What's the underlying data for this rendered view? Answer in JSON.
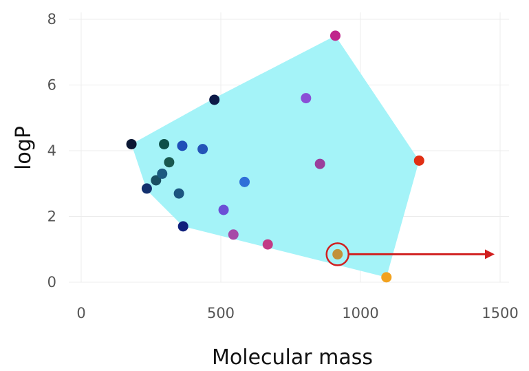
{
  "chart_data": {
    "type": "scatter",
    "xlabel": "Molecular mass",
    "ylabel": "logP",
    "xlim": [
      0,
      1500
    ],
    "ylim": [
      0,
      8
    ],
    "x_ticks": [
      0,
      500,
      1000,
      1500
    ],
    "y_ticks": [
      0,
      2,
      4,
      6,
      8
    ],
    "x_tick_labels": [
      "0",
      "500",
      "1000",
      "1500"
    ],
    "y_tick_labels": [
      "0",
      "2",
      "4",
      "6",
      "8"
    ],
    "grid": true,
    "hull_color": "#a4f3f8",
    "hull": [
      {
        "x": 180,
        "y": 4.2
      },
      {
        "x": 477,
        "y": 5.6
      },
      {
        "x": 910,
        "y": 7.5
      },
      {
        "x": 1210,
        "y": 3.7
      },
      {
        "x": 1093,
        "y": 0.15
      },
      {
        "x": 365,
        "y": 1.7
      },
      {
        "x": 235,
        "y": 2.8
      }
    ],
    "points": [
      {
        "x": 180,
        "y": 4.2,
        "color": "#0b1733"
      },
      {
        "x": 235,
        "y": 2.85,
        "color": "#13306e"
      },
      {
        "x": 268,
        "y": 3.1,
        "color": "#1a4f62"
      },
      {
        "x": 290,
        "y": 3.3,
        "color": "#1d5a80"
      },
      {
        "x": 297,
        "y": 4.2,
        "color": "#0e4f48"
      },
      {
        "x": 315,
        "y": 3.65,
        "color": "#19584f"
      },
      {
        "x": 350,
        "y": 2.7,
        "color": "#1b5580"
      },
      {
        "x": 362,
        "y": 4.15,
        "color": "#1f4eb8"
      },
      {
        "x": 365,
        "y": 1.7,
        "color": "#10207c"
      },
      {
        "x": 435,
        "y": 4.05,
        "color": "#2454b8"
      },
      {
        "x": 477,
        "y": 5.55,
        "color": "#0d1a48"
      },
      {
        "x": 510,
        "y": 2.2,
        "color": "#6b4fd6"
      },
      {
        "x": 545,
        "y": 1.45,
        "color": "#a64aa8"
      },
      {
        "x": 585,
        "y": 3.05,
        "color": "#2f6fd8"
      },
      {
        "x": 668,
        "y": 1.15,
        "color": "#c23b85"
      },
      {
        "x": 805,
        "y": 5.6,
        "color": "#8a4fd6"
      },
      {
        "x": 855,
        "y": 3.6,
        "color": "#9a3f9c"
      },
      {
        "x": 910,
        "y": 7.5,
        "color": "#c0258c"
      },
      {
        "x": 918,
        "y": 0.85,
        "color": "#c2923a"
      },
      {
        "x": 1093,
        "y": 0.15,
        "color": "#f2a21e"
      },
      {
        "x": 1210,
        "y": 3.7,
        "color": "#e02f14"
      }
    ],
    "highlight": {
      "x": 918,
      "y": 0.85,
      "circle_color": "#d11f1f",
      "arrow_to_x": 1500,
      "arrow_color": "#d11f1f"
    }
  }
}
